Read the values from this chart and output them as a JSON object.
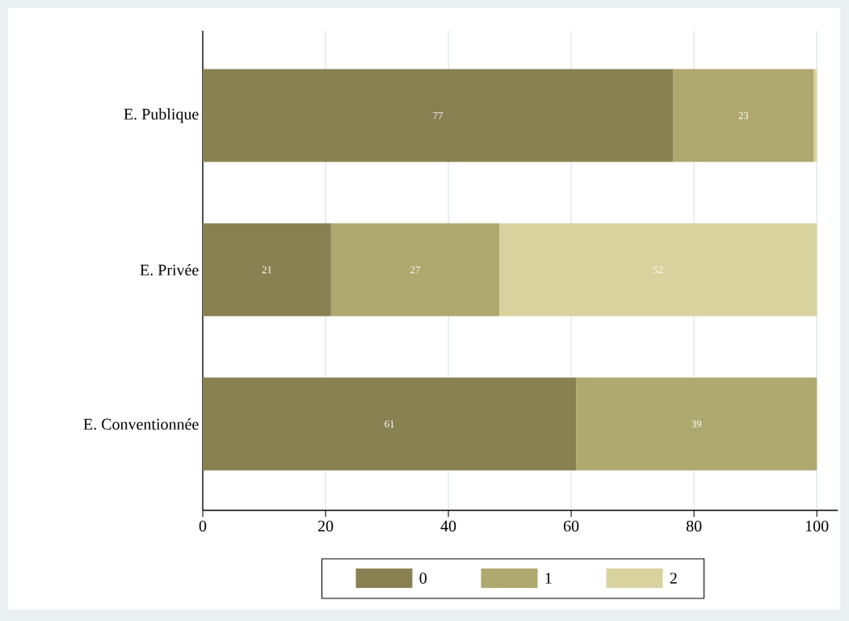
{
  "chart_data": {
    "type": "bar",
    "orientation": "horizontal",
    "stacked": true,
    "categories": [
      "E. Publique",
      "E. Privée",
      "E. Conventionnée"
    ],
    "series": [
      {
        "name": "0",
        "color": "#8a8152",
        "values": [
          76.6,
          20.9,
          60.8
        ],
        "value_labels": [
          "77",
          "21",
          "61"
        ]
      },
      {
        "name": "1",
        "color": "#afa86f",
        "values": [
          22.9,
          27.4,
          39.2
        ],
        "value_labels": [
          "23",
          "27",
          "39"
        ]
      },
      {
        "name": "2",
        "color": "#d8d29e",
        "values": [
          0.5,
          51.7,
          null
        ],
        "value_labels": [
          null,
          "52",
          null
        ]
      }
    ],
    "xlim": [
      0,
      103.4
    ],
    "xticks": [
      0,
      20,
      40,
      60,
      80,
      100
    ],
    "grid": "x",
    "legend": "bottom"
  }
}
